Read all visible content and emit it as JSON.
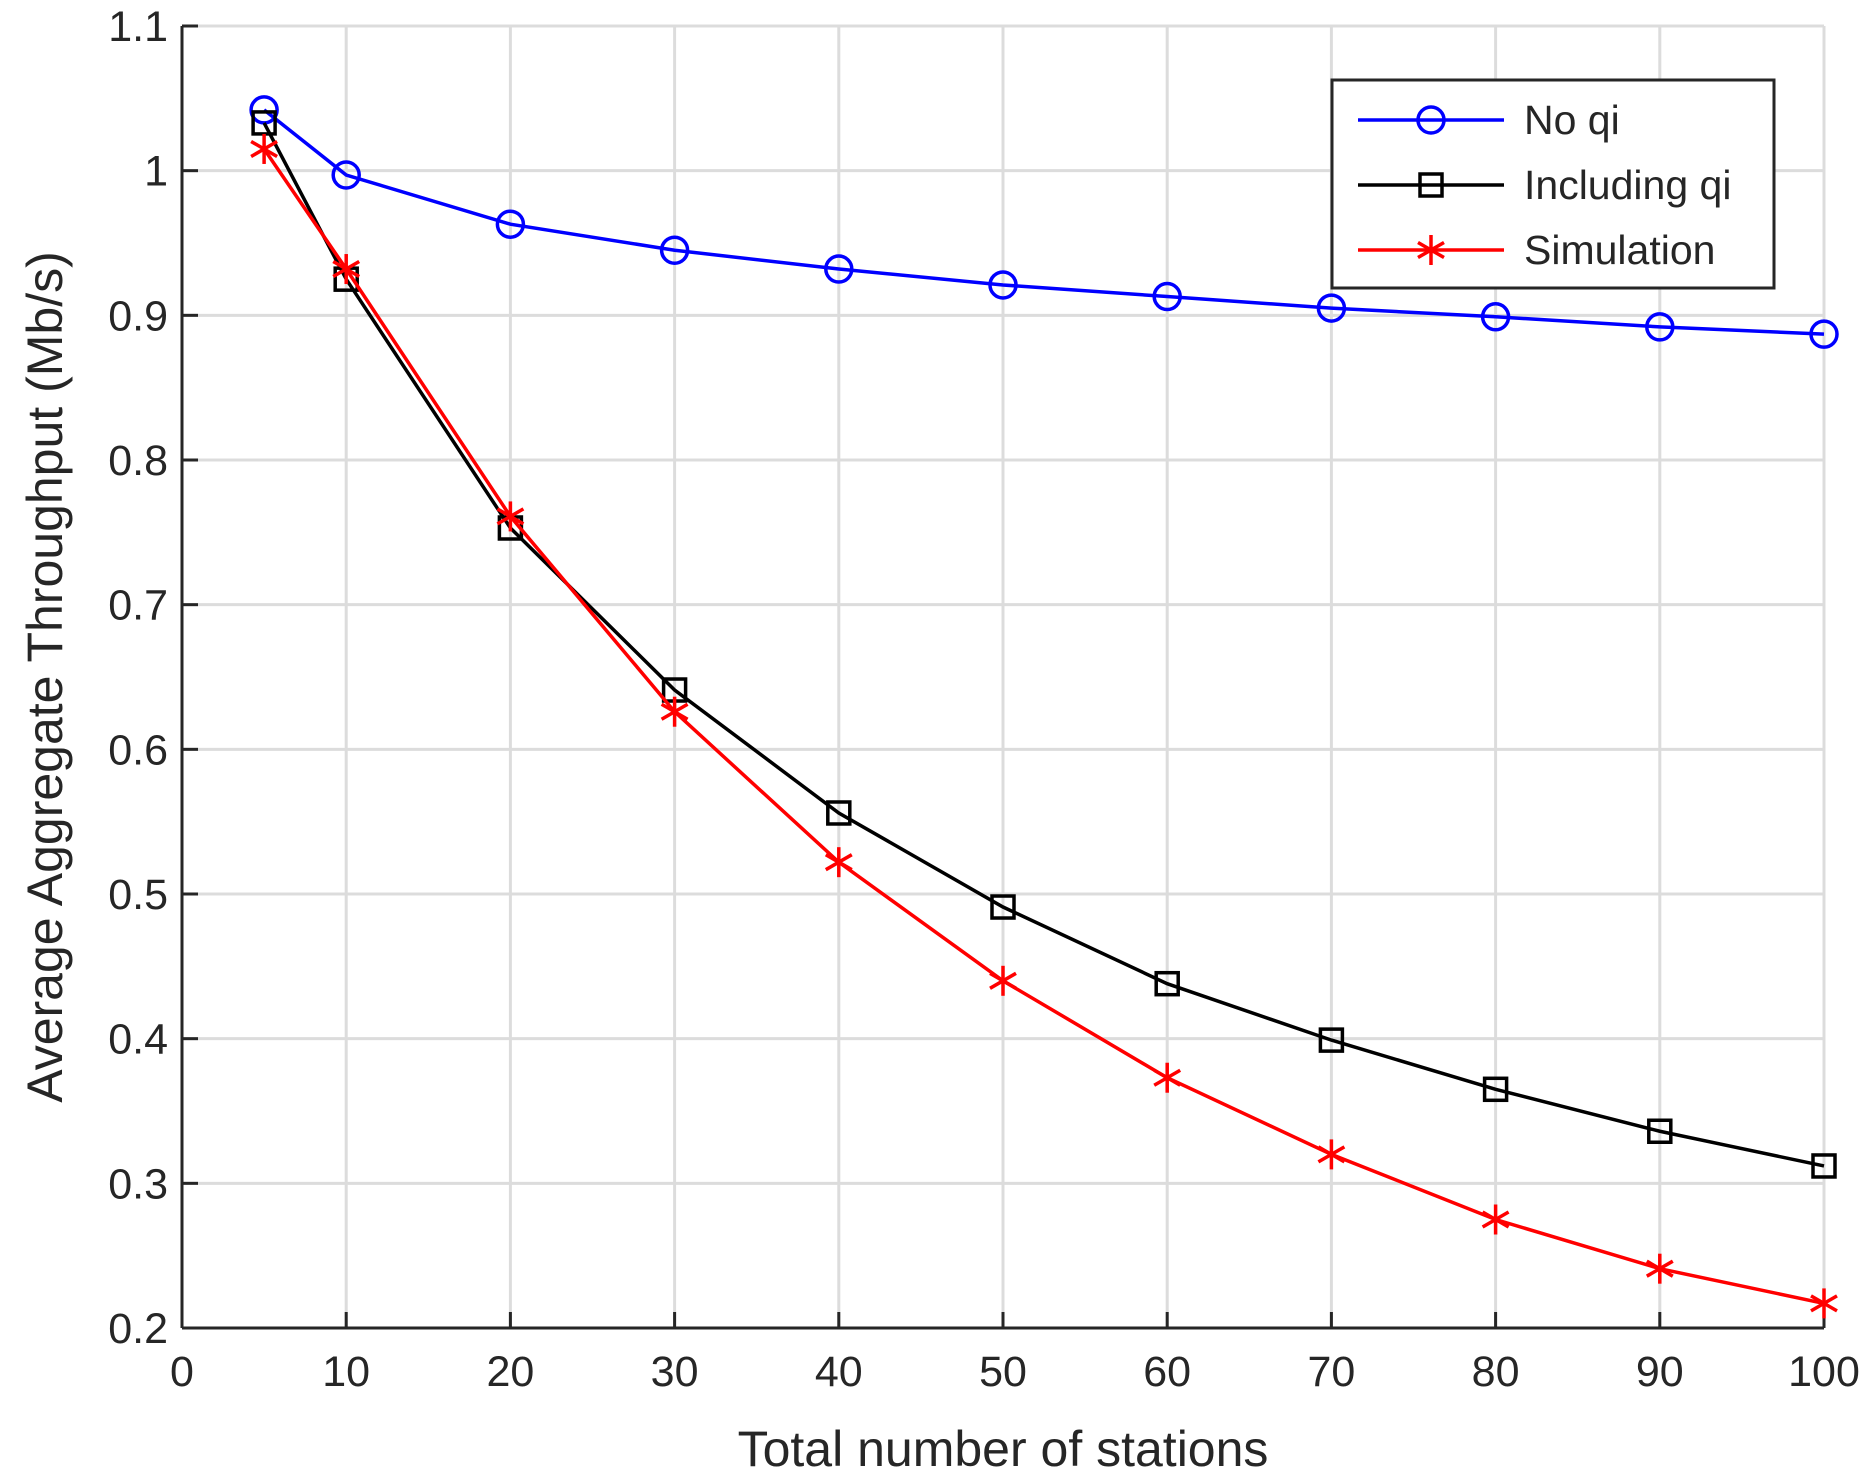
{
  "chart_data": {
    "type": "line",
    "title": "",
    "xlabel": "Total number of stations",
    "ylabel": "Average Aggregate Throughput (Mb/s)",
    "xlim": [
      0,
      100
    ],
    "ylim": [
      0.2,
      1.1
    ],
    "xticks": [
      0,
      10,
      20,
      30,
      40,
      50,
      60,
      70,
      80,
      90,
      100
    ],
    "yticks": [
      0.2,
      0.3,
      0.4,
      0.5,
      0.6,
      0.7,
      0.8,
      0.9,
      1.0,
      1.1
    ],
    "xtick_labels": [
      "0",
      "10",
      "20",
      "30",
      "40",
      "50",
      "60",
      "70",
      "80",
      "90",
      "100"
    ],
    "ytick_labels": [
      "0.2",
      "0.3",
      "0.4",
      "0.5",
      "0.6",
      "0.7",
      "0.8",
      "0.9",
      "1",
      "1.1"
    ],
    "grid": true,
    "legend_position": "top-right",
    "x": [
      5,
      10,
      20,
      30,
      40,
      50,
      60,
      70,
      80,
      90,
      100
    ],
    "series": [
      {
        "name": "No qi",
        "marker": "circle",
        "color": "#0000ff",
        "values": [
          1.042,
          0.997,
          0.963,
          0.945,
          0.932,
          0.921,
          0.913,
          0.905,
          0.899,
          0.892,
          0.887
        ]
      },
      {
        "name": "Including qi",
        "marker": "square",
        "color": "#000000",
        "values": [
          1.033,
          0.925,
          0.753,
          0.641,
          0.556,
          0.491,
          0.438,
          0.399,
          0.365,
          0.336,
          0.312
        ]
      },
      {
        "name": "Simulation",
        "marker": "asterisk",
        "color": "#ff0000",
        "values": [
          1.015,
          0.932,
          0.761,
          0.626,
          0.522,
          0.44,
          0.373,
          0.32,
          0.275,
          0.241,
          0.217
        ]
      }
    ]
  }
}
